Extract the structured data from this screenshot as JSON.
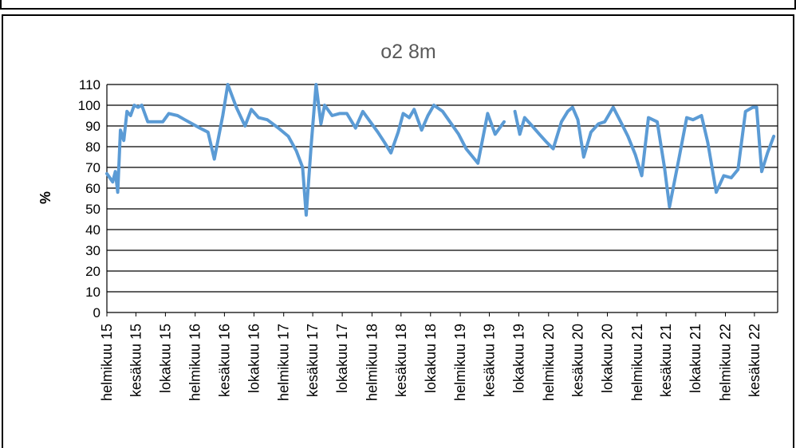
{
  "chart_data": {
    "type": "line",
    "title": "o2 8m",
    "xlabel": "",
    "ylabel": "%",
    "ylim": [
      0,
      110
    ],
    "yticks": [
      0,
      10,
      20,
      30,
      40,
      50,
      60,
      70,
      80,
      90,
      100,
      110
    ],
    "grid": true,
    "legend": "none",
    "line_color": "#5B9BD5",
    "x_tick_labels": [
      "helmikuu 15",
      "kesäkuu 15",
      "lokakuu 15",
      "helmikuu 16",
      "kesäkuu 16",
      "lokakuu 16",
      "helmikuu 17",
      "kesäkuu 17",
      "lokakuu 17",
      "helmikuu 18",
      "kesäkuu 18",
      "lokakuu 18",
      "helmikuu 19",
      "kesäkuu 19",
      "lokakuu 19",
      "helmikuu 20",
      "kesäkuu 20",
      "lokakuu 20",
      "helmikuu 21",
      "kesäkuu 21",
      "lokakuu 21",
      "helmikuu 22",
      "kesäkuu 22"
    ],
    "series": [
      {
        "segments": [
          [
            [
              "2015-02-01",
              67
            ],
            [
              "2015-02-25",
              63
            ],
            [
              "2015-03-08",
              68
            ],
            [
              "2015-03-18",
              58
            ],
            [
              "2015-03-29",
              88
            ],
            [
              "2015-04-12",
              83
            ],
            [
              "2015-04-25",
              97
            ],
            [
              "2015-05-10",
              95
            ],
            [
              "2015-05-25",
              100
            ],
            [
              "2015-06-10",
              99
            ],
            [
              "2015-06-25",
              100
            ],
            [
              "2015-07-20",
              92
            ],
            [
              "2015-08-25",
              92
            ],
            [
              "2015-09-20",
              92
            ],
            [
              "2015-10-15",
              96
            ],
            [
              "2015-11-20",
              95
            ],
            [
              "2015-12-20",
              93
            ],
            [
              "2016-01-20",
              91
            ],
            [
              "2016-02-20",
              89
            ],
            [
              "2016-03-25",
              87
            ],
            [
              "2016-04-20",
              74
            ],
            [
              "2016-05-25",
              95
            ],
            [
              "2016-06-15",
              110
            ],
            [
              "2016-07-20",
              99
            ],
            [
              "2016-08-25",
              90
            ],
            [
              "2016-09-20",
              98
            ],
            [
              "2016-10-20",
              94
            ],
            [
              "2016-11-25",
              93
            ],
            [
              "2017-01-10",
              89
            ],
            [
              "2017-02-20",
              85
            ],
            [
              "2017-03-25",
              78
            ],
            [
              "2017-04-20",
              70
            ],
            [
              "2017-05-05",
              47
            ],
            [
              "2017-05-25",
              80
            ],
            [
              "2017-06-15",
              110
            ],
            [
              "2017-07-05",
              91
            ],
            [
              "2017-07-20",
              100
            ],
            [
              "2017-08-20",
              95
            ],
            [
              "2017-09-20",
              96
            ],
            [
              "2017-10-20",
              96
            ],
            [
              "2017-11-25",
              89
            ],
            [
              "2017-12-25",
              97
            ],
            [
              "2018-01-25",
              92
            ],
            [
              "2018-02-25",
              87
            ],
            [
              "2018-03-25",
              82
            ],
            [
              "2018-04-20",
              77
            ],
            [
              "2018-05-20",
              87
            ],
            [
              "2018-06-10",
              96
            ],
            [
              "2018-07-05",
              94
            ],
            [
              "2018-07-25",
              98
            ],
            [
              "2018-08-25",
              88
            ],
            [
              "2018-09-20",
              95
            ],
            [
              "2018-10-15",
              100
            ],
            [
              "2018-11-20",
              97
            ],
            [
              "2018-12-20",
              92
            ],
            [
              "2019-01-25",
              86
            ],
            [
              "2019-02-25",
              79
            ],
            [
              "2019-03-25",
              75
            ],
            [
              "2019-04-15",
              72
            ],
            [
              "2019-05-25",
              96
            ],
            [
              "2019-06-25",
              86
            ],
            [
              "2019-08-01",
              92
            ]
          ],
          [
            [
              "2019-09-15",
              97
            ],
            [
              "2019-10-05",
              86
            ],
            [
              "2019-10-25",
              94
            ],
            [
              "2019-11-25",
              90
            ],
            [
              "2019-12-25",
              86
            ],
            [
              "2020-01-25",
              82
            ],
            [
              "2020-02-20",
              79
            ],
            [
              "2020-03-25",
              92
            ],
            [
              "2020-04-20",
              97
            ],
            [
              "2020-05-10",
              99
            ],
            [
              "2020-06-01",
              93
            ],
            [
              "2020-06-25",
              75
            ],
            [
              "2020-07-25",
              87
            ],
            [
              "2020-08-25",
              91
            ],
            [
              "2020-09-20",
              92
            ],
            [
              "2020-10-25",
              99
            ],
            [
              "2020-11-25",
              92
            ],
            [
              "2020-12-25",
              85
            ],
            [
              "2021-01-25",
              76
            ],
            [
              "2021-02-20",
              66
            ],
            [
              "2021-03-20",
              94
            ],
            [
              "2021-04-25",
              92
            ],
            [
              "2021-05-25",
              70
            ],
            [
              "2021-06-15",
              51
            ],
            [
              "2021-07-25",
              75
            ],
            [
              "2021-08-25",
              94
            ],
            [
              "2021-09-20",
              93
            ],
            [
              "2021-10-25",
              95
            ],
            [
              "2021-11-20",
              82
            ],
            [
              "2021-12-25",
              58
            ],
            [
              "2022-01-25",
              66
            ],
            [
              "2022-02-25",
              65
            ],
            [
              "2022-03-25",
              69
            ],
            [
              "2022-04-25",
              97
            ],
            [
              "2022-05-25",
              99
            ],
            [
              "2022-06-10",
              99
            ],
            [
              "2022-07-01",
              68
            ],
            [
              "2022-07-25",
              77
            ],
            [
              "2022-08-20",
              85
            ]
          ]
        ]
      }
    ]
  }
}
